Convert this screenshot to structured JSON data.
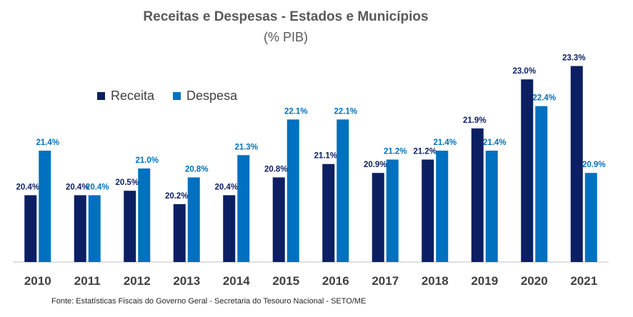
{
  "title": "Receitas e Despesas - Estados e Municípios",
  "subtitle": "(% PIB)",
  "source": "Fonte: Estatísticas Fiscais do Governo Geral - Secretaria do Tesouro Nacional - SETO/ME",
  "colors": {
    "receita": "#0b1f62",
    "despesa": "#0070c0",
    "axis": "#bfbfbf"
  },
  "chart_data": {
    "type": "bar",
    "title": "Receitas e Despesas - Estados e Municípios",
    "subtitle": "(% PIB)",
    "categories": [
      "2010",
      "2011",
      "2012",
      "2013",
      "2014",
      "2015",
      "2016",
      "2017",
      "2018",
      "2019",
      "2020",
      "2021"
    ],
    "series": [
      {
        "name": "Receita",
        "values": [
          20.4,
          20.4,
          20.5,
          20.2,
          20.4,
          20.8,
          21.1,
          20.9,
          21.2,
          21.9,
          23.0,
          23.3
        ],
        "labels": [
          "20.4%",
          "20.4%",
          "20.5%",
          "20.2%",
          "20.4%",
          "20.8%",
          "21.1%",
          "20.9%",
          "21.2%",
          "21.9%",
          "23.0%",
          "23.3%"
        ]
      },
      {
        "name": "Despesa",
        "values": [
          21.4,
          20.4,
          21.0,
          20.8,
          21.3,
          22.1,
          22.1,
          21.2,
          21.4,
          21.4,
          22.4,
          20.9
        ],
        "labels": [
          "21.4%",
          "20.4%",
          "21.0%",
          "20.8%",
          "21.3%",
          "22.1%",
          "22.1%",
          "21.2%",
          "21.4%",
          "21.4%",
          "22.4%",
          "20.9%"
        ]
      }
    ],
    "ylim": [
      18.9,
      23.5
    ],
    "legend": "top-left",
    "grid": false
  }
}
